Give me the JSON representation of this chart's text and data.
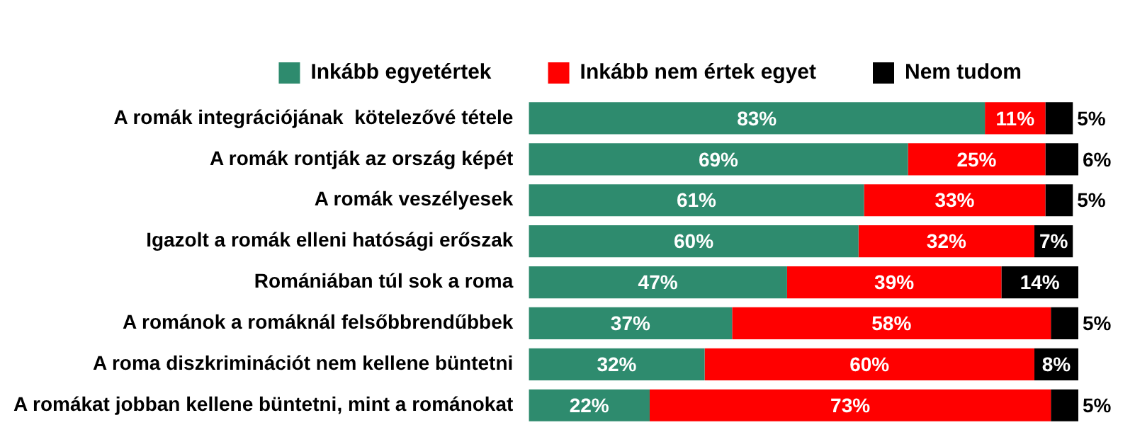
{
  "chart_data": {
    "type": "bar",
    "orientation": "horizontal",
    "stacked": true,
    "legend": "top",
    "categories": [
      "A romák integrációjának  kötelezővé tétele",
      "A romák rontják az ország képét",
      "A romák veszélyesek",
      "Igazolt a romák elleni hatósági erőszak",
      "Romániában túl sok a roma",
      "A románok a romáknál felsőbbrendűbbek",
      "A roma diszkriminációt nem kellene büntetni",
      "A romákat jobban kellene büntetni, mint a románokat"
    ],
    "series": [
      {
        "name": "Inkább egyetértek",
        "color": "#2e8b6e",
        "values": [
          83,
          69,
          61,
          60,
          47,
          37,
          32,
          22
        ],
        "value_labels": [
          "83%",
          "69%",
          "61%",
          "60%",
          "47%",
          "37%",
          "32%",
          "22%"
        ]
      },
      {
        "name": "Inkább nem értek egyet",
        "color": "#ff0000",
        "values": [
          11,
          25,
          33,
          32,
          39,
          58,
          60,
          73
        ],
        "value_labels": [
          "11%",
          "25%",
          "33%",
          "32%",
          "39%",
          "58%",
          "60%",
          "73%"
        ]
      },
      {
        "name": "Nem tudom",
        "color": "#000000",
        "values": [
          5,
          6,
          5,
          7,
          14,
          5,
          8,
          5
        ],
        "value_labels": [
          "5%",
          "6%",
          "5%",
          "7%",
          "14%",
          "5%",
          "8%",
          "5%"
        ]
      }
    ]
  }
}
